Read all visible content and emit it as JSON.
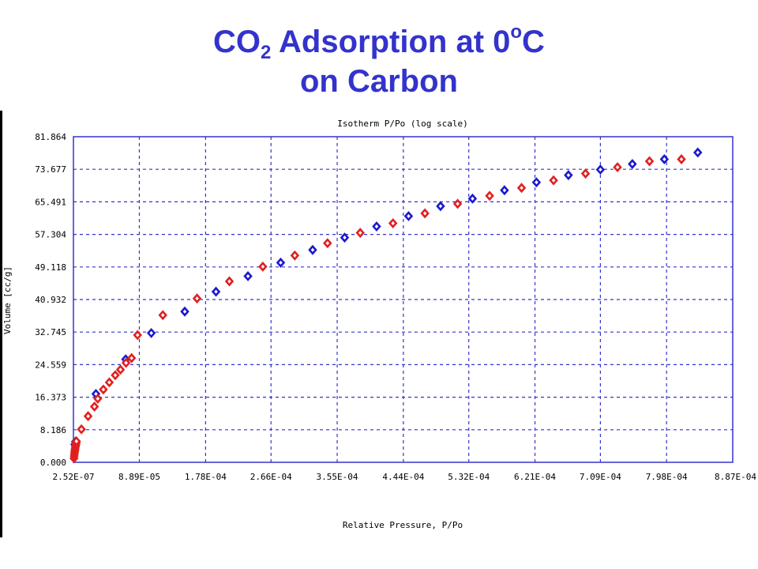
{
  "title": {
    "line1_pre": "CO",
    "sub": "2",
    "line1_mid": " Adsorption at 0",
    "sup": "o",
    "line1_post": "C",
    "line2": "on Carbon"
  },
  "chart_data": {
    "type": "scatter",
    "title": "Isotherm P/Po (log scale)",
    "xlabel": "Relative Pressure, P/Po",
    "ylabel": "Volume [cc/g]",
    "xlim": [
      2.52e-07,
      0.000887
    ],
    "ylim": [
      0,
      81.864
    ],
    "x_ticks": [
      "2.52E-07",
      "8.89E-05",
      "1.78E-04",
      "2.66E-04",
      "3.55E-04",
      "4.44E-04",
      "5.32E-04",
      "6.21E-04",
      "7.09E-04",
      "7.98E-04",
      "8.87E-04"
    ],
    "x_tick_values": [
      2.52e-07,
      8.89e-05,
      0.000178,
      0.000266,
      0.000355,
      0.000444,
      0.000532,
      0.000621,
      0.000709,
      0.000798,
      0.000887
    ],
    "y_ticks": [
      "0.000",
      "8.186",
      "16.373",
      "24.559",
      "32.745",
      "40.932",
      "49.118",
      "57.304",
      "65.491",
      "73.677",
      "81.864"
    ],
    "y_tick_values": [
      0,
      8.186,
      16.373,
      24.559,
      32.745,
      40.932,
      49.118,
      57.304,
      65.491,
      73.677,
      81.864
    ],
    "grid": true,
    "series": [
      {
        "color": "#1a1acc",
        "x": [
          2e-06,
          3e-06,
          3.05e-05,
          7.05e-05,
          0.000105,
          0.00015,
          0.000192,
          0.000235,
          0.000279,
          0.000322,
          0.000365,
          0.000408,
          0.000451,
          0.000494,
          0.000537,
          0.00058,
          0.000623,
          0.000666,
          0.000709,
          0.000752,
          0.000795,
          0.00084
        ],
        "y": [
          4.5,
          5.2,
          17.2,
          25.9,
          32.5,
          37.9,
          42.9,
          46.8,
          50.2,
          53.4,
          56.5,
          59.3,
          61.9,
          64.4,
          66.3,
          68.4,
          70.4,
          72.2,
          73.6,
          75.0,
          76.2,
          77.9
        ]
      },
      {
        "color": "#e02020",
        "x": [
          1e-06,
          1.3e-06,
          1.6e-06,
          1.9e-06,
          2.2e-06,
          2.5e-06,
          2.8e-06,
          3.1e-06,
          3.4e-06,
          3.7e-06,
          4e-06,
          4.3e-06,
          1.1e-05,
          2e-05,
          2.85e-05,
          3.3e-05,
          4.05e-05,
          4.85e-05,
          5.65e-05,
          6.35e-05,
          7.1e-05,
          7.85e-05,
          8.65e-05,
          0.0001205,
          0.0001665,
          0.00021,
          0.000255,
          0.000298,
          0.000342,
          0.000386,
          0.00043,
          0.000473,
          0.000517,
          0.00056,
          0.000603,
          0.000646,
          0.000689,
          0.000732,
          0.000775,
          0.000818
        ],
        "y": [
          1.0,
          1.6,
          2.1,
          2.6,
          3.0,
          3.4,
          3.8,
          4.1,
          4.4,
          4.7,
          5.0,
          5.3,
          8.3,
          11.6,
          14.0,
          16.0,
          18.3,
          20.1,
          21.9,
          23.3,
          25.0,
          26.2,
          32.0,
          37.0,
          41.2,
          45.5,
          49.2,
          52.0,
          55.1,
          57.7,
          60.1,
          62.6,
          65.0,
          67.0,
          69.0,
          70.9,
          72.6,
          74.2,
          75.7,
          76.2
        ]
      }
    ]
  }
}
